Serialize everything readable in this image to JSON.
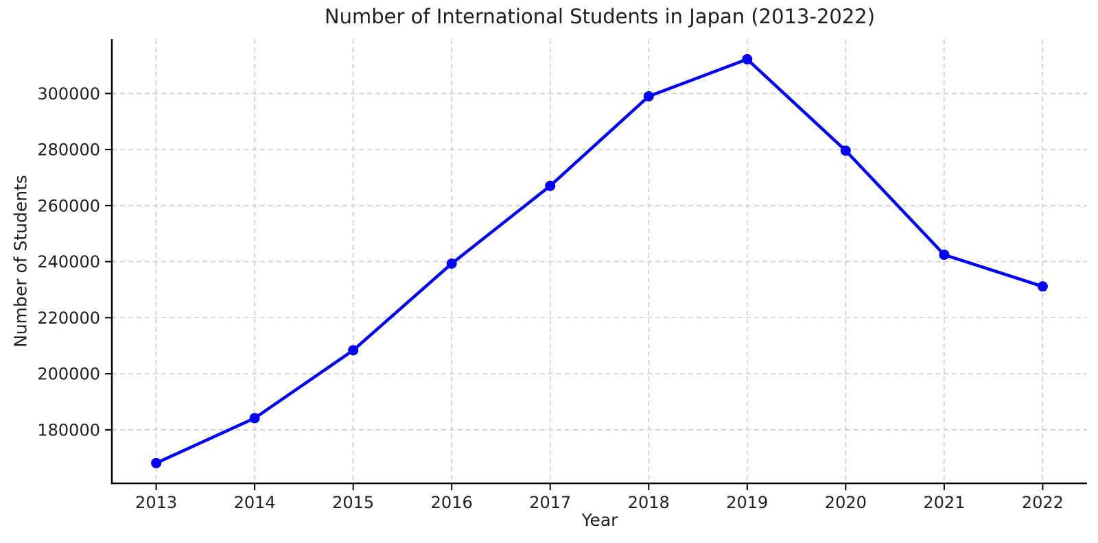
{
  "chart_data": {
    "type": "line",
    "title": "Number of International Students in Japan (2013-2022)",
    "xlabel": "Year",
    "ylabel": "Number of Students",
    "x": [
      2013,
      2014,
      2015,
      2016,
      2017,
      2018,
      2019,
      2020,
      2021,
      2022
    ],
    "values": [
      168145,
      184155,
      208379,
      239287,
      267042,
      298980,
      312214,
      279597,
      242444,
      231146
    ],
    "series_name": "International Students",
    "xticks": [
      2013,
      2014,
      2015,
      2016,
      2017,
      2018,
      2019,
      2020,
      2021,
      2022
    ],
    "yticks": [
      180000,
      200000,
      220000,
      240000,
      260000,
      280000,
      300000
    ],
    "xlim": [
      2012.55,
      2022.45
    ],
    "ylim": [
      160900,
      319400
    ],
    "grid": true,
    "grid_style": "dashed",
    "legend": false,
    "marker": "circle",
    "line_color": "#0000ff",
    "marker_color": "#0000ff",
    "grid_color": "#cccccc",
    "spine_color": "#000000",
    "text_color": "#1f1f1f",
    "background_color": "#ffffff"
  }
}
